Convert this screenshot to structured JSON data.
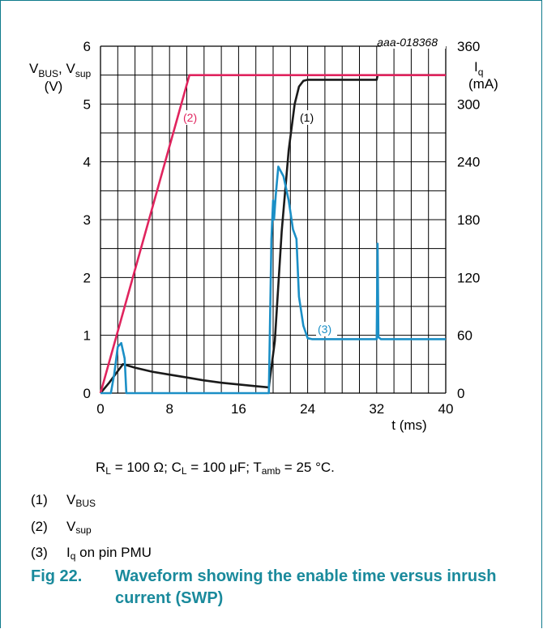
{
  "chart_data": {
    "type": "line",
    "code": "aaa-018368",
    "xlabel": "t (ms)",
    "xlim": [
      0,
      40
    ],
    "x_ticks": [
      "0",
      "8",
      "16",
      "24",
      "32",
      "40"
    ],
    "left_axis": {
      "label_line1": "V",
      "label_sub1": "BUS",
      "label_mid": ", V",
      "label_sub2": "sup",
      "label_line2": "(V)",
      "ylim": [
        0,
        6
      ],
      "ticks": [
        "0",
        "1",
        "2",
        "3",
        "4",
        "5",
        "6"
      ]
    },
    "right_axis": {
      "label_line1": "I",
      "label_sub": "q",
      "label_line2": "(mA)",
      "ylim": [
        0,
        360
      ],
      "ticks": [
        "0",
        "60",
        "120",
        "180",
        "240",
        "300",
        "360"
      ]
    },
    "grid": true,
    "series": [
      {
        "name": "(1)",
        "color": "#1a1a1a",
        "axis": "left",
        "points": [
          [
            0,
            0
          ],
          [
            1,
            0.18
          ],
          [
            2,
            0.38
          ],
          [
            2.6,
            0.5
          ],
          [
            4,
            0.44
          ],
          [
            6,
            0.37
          ],
          [
            8,
            0.32
          ],
          [
            10,
            0.27
          ],
          [
            12,
            0.22
          ],
          [
            14,
            0.18
          ],
          [
            16,
            0.15
          ],
          [
            18,
            0.12
          ],
          [
            19.5,
            0.1
          ],
          [
            20.2,
            0.9
          ],
          [
            21,
            2.8
          ],
          [
            21.8,
            4.2
          ],
          [
            22.5,
            5.0
          ],
          [
            23,
            5.3
          ],
          [
            23.5,
            5.4
          ],
          [
            24,
            5.42
          ],
          [
            32,
            5.42
          ],
          [
            32.1,
            5.5
          ],
          [
            40,
            5.5
          ]
        ]
      },
      {
        "name": "(2)",
        "color": "#e0245e",
        "axis": "left",
        "points": [
          [
            0,
            0
          ],
          [
            10.3,
            5.5
          ],
          [
            40,
            5.5
          ]
        ]
      },
      {
        "name": "(3)",
        "color": "#1b8fc6",
        "axis": "right",
        "points": [
          [
            0,
            0
          ],
          [
            1.2,
            0
          ],
          [
            1.6,
            20
          ],
          [
            2.0,
            48
          ],
          [
            2.4,
            52
          ],
          [
            2.8,
            36
          ],
          [
            3.0,
            0
          ],
          [
            19.5,
            0
          ],
          [
            19.8,
            160
          ],
          [
            20.0,
            200
          ],
          [
            20.1,
            180
          ],
          [
            20.3,
            205
          ],
          [
            20.6,
            235
          ],
          [
            21.2,
            225
          ],
          [
            21.8,
            200
          ],
          [
            22.3,
            170
          ],
          [
            22.7,
            160
          ],
          [
            23.0,
            100
          ],
          [
            23.5,
            70
          ],
          [
            24,
            57
          ],
          [
            24.5,
            56
          ],
          [
            32,
            56
          ],
          [
            32.1,
            155
          ],
          [
            32.2,
            58
          ],
          [
            32.5,
            56
          ],
          [
            40,
            56
          ]
        ]
      }
    ]
  },
  "notes": {
    "conditions": {
      "r": "R",
      "r_sub": "L",
      "r_val": " = 100 Ω; C",
      "c_sub": "L",
      "c_val": " = 100 μF; T",
      "t_sub": "amb",
      "t_val": " = 25 °C."
    },
    "items": [
      {
        "num": "(1)",
        "main": "V",
        "sub": "BUS",
        "rest": ""
      },
      {
        "num": "(2)",
        "main": "V",
        "sub": "sup",
        "rest": ""
      },
      {
        "num": "(3)",
        "main": "I",
        "sub": "q",
        "rest": " on pin PMU"
      }
    ]
  },
  "caption": {
    "fig": "Fig 22.",
    "text": "Waveform showing the enable time versus inrush current (SWP)"
  }
}
